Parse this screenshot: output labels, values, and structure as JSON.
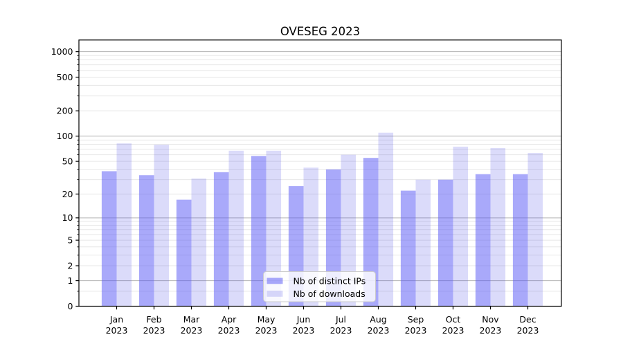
{
  "chart_data": {
    "type": "bar",
    "title": "OVESEG 2023",
    "categories": [
      "Jan",
      "Feb",
      "Mar",
      "Apr",
      "May",
      "Jun",
      "Jul",
      "Aug",
      "Sep",
      "Oct",
      "Nov",
      "Dec"
    ],
    "year": "2023",
    "series": [
      {
        "name": "Nb of distinct IPs",
        "color": "rgba(83,83,245,0.5)",
        "values": [
          38,
          34,
          17,
          37,
          58,
          25,
          40,
          55,
          22,
          30,
          35,
          35
        ]
      },
      {
        "name": "Nb of downloads",
        "color": "rgba(75,75,230,0.2)",
        "values": [
          82,
          79,
          31,
          67,
          67,
          42,
          60,
          110,
          30,
          75,
          72,
          63
        ]
      }
    ],
    "xlabel": "",
    "ylabel": "",
    "y_scale": "log1p",
    "ylim": [
      0,
      1360
    ],
    "y_major_ticks": [
      0,
      1,
      2,
      5,
      10,
      20,
      50,
      100,
      200,
      500,
      1000
    ],
    "y_decade_gridlines": [
      1,
      10,
      100,
      1000
    ],
    "y_minor_gridlines": [
      0.5,
      2,
      3,
      4,
      5,
      6,
      7,
      8,
      9,
      20,
      30,
      40,
      50,
      60,
      70,
      80,
      90,
      200,
      300,
      400,
      500,
      600,
      700,
      800,
      900
    ],
    "grid": true,
    "legend_position": "lower center",
    "colors": {
      "grid_decade": "#b3b3b3",
      "grid_minor": "#e7e7e7",
      "axis": "#000000",
      "legend_border": "#cccccc",
      "legend_bg": "rgba(255,255,255,0.8)"
    }
  }
}
